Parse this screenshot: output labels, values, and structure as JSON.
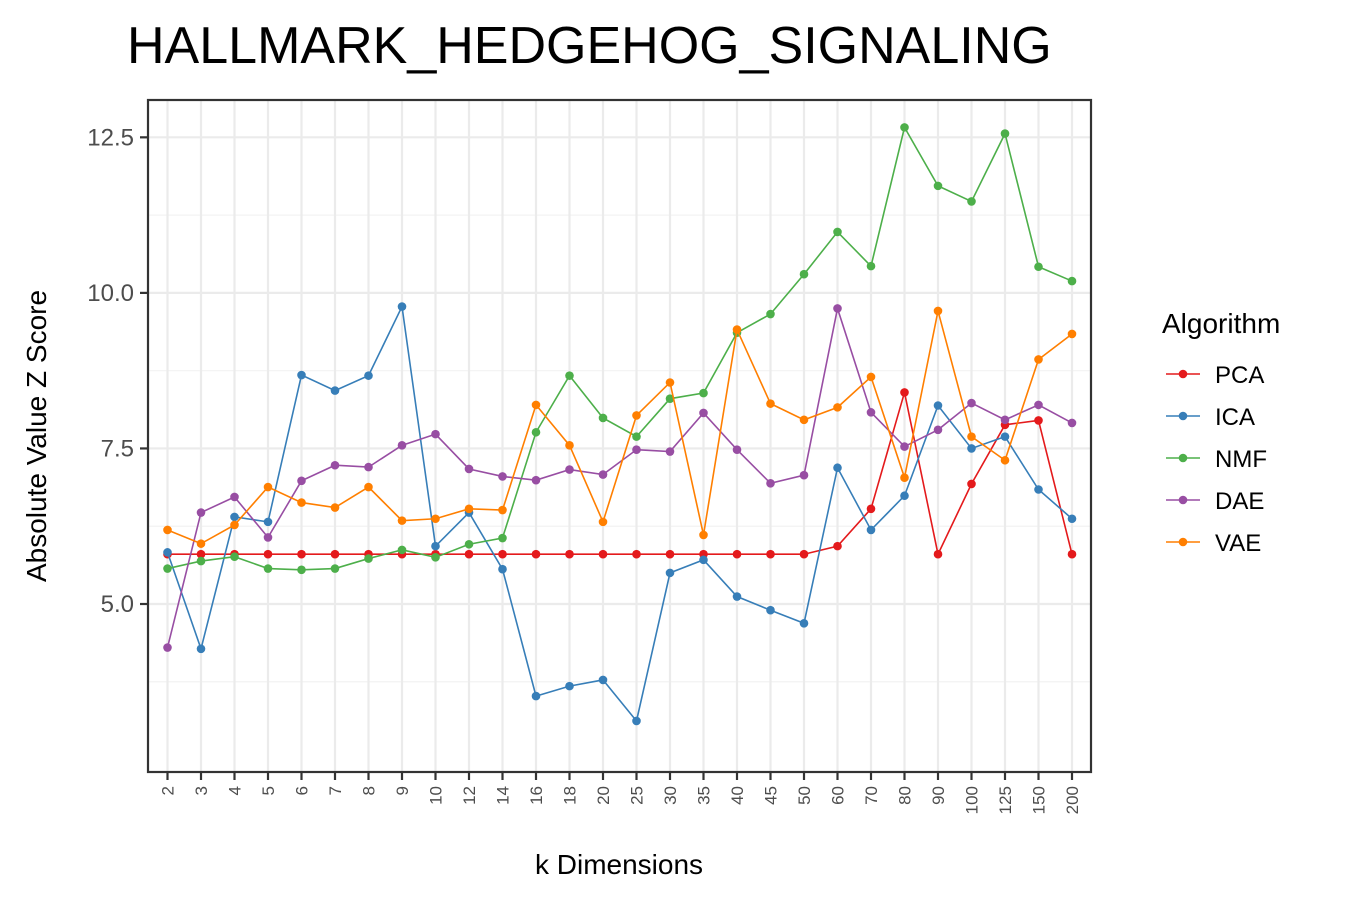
{
  "chart_data": {
    "type": "line",
    "title": "HALLMARK_HEDGEHOG_SIGNALING",
    "xlabel": "k Dimensions",
    "ylabel": "Absolute Value Z Score",
    "categories": [
      "2",
      "3",
      "4",
      "5",
      "6",
      "7",
      "8",
      "9",
      "10",
      "12",
      "14",
      "16",
      "18",
      "20",
      "25",
      "30",
      "35",
      "40",
      "45",
      "50",
      "60",
      "70",
      "80",
      "90",
      "100",
      "125",
      "150",
      "200"
    ],
    "ylim": [
      2.3,
      13.1
    ],
    "yticks": [
      5.0,
      7.5,
      10.0,
      12.5
    ],
    "ytick_labels": [
      "5.0",
      "7.5",
      "10.0",
      "12.5"
    ],
    "grid": true,
    "legend": {
      "title": "Algorithm",
      "position": "right"
    },
    "series": [
      {
        "name": "PCA",
        "color": "#e41a1c",
        "values": [
          5.8,
          5.8,
          5.8,
          5.8,
          5.8,
          5.8,
          5.8,
          5.8,
          5.8,
          5.8,
          5.8,
          5.8,
          5.8,
          5.8,
          5.8,
          5.8,
          5.8,
          5.8,
          5.8,
          5.8,
          5.93,
          6.53,
          8.4,
          5.8,
          6.93,
          7.88,
          7.95,
          5.8
        ]
      },
      {
        "name": "ICA",
        "color": "#377eb8",
        "values": [
          5.83,
          4.28,
          6.4,
          6.32,
          8.68,
          8.43,
          8.67,
          9.78,
          5.93,
          6.47,
          5.56,
          3.52,
          3.68,
          3.78,
          3.12,
          5.5,
          5.71,
          5.12,
          4.9,
          4.69,
          7.19,
          6.19,
          6.74,
          8.19,
          7.5,
          7.69,
          6.84,
          6.37
        ]
      },
      {
        "name": "NMF",
        "color": "#4daf4a",
        "values": [
          5.57,
          5.69,
          5.76,
          5.57,
          5.55,
          5.57,
          5.73,
          5.87,
          5.75,
          5.96,
          6.06,
          7.76,
          8.67,
          7.99,
          7.69,
          8.3,
          8.39,
          9.36,
          9.66,
          10.3,
          10.98,
          10.43,
          12.66,
          11.72,
          11.47,
          12.56,
          10.42,
          10.19
        ]
      },
      {
        "name": "DAE",
        "color": "#984ea3",
        "values": [
          4.3,
          6.47,
          6.72,
          6.07,
          6.98,
          7.23,
          7.2,
          7.55,
          7.73,
          7.17,
          7.05,
          6.99,
          7.16,
          7.08,
          7.48,
          7.45,
          8.07,
          7.48,
          6.94,
          7.07,
          9.75,
          8.08,
          7.53,
          7.8,
          8.23,
          7.96,
          8.2,
          7.91
        ]
      },
      {
        "name": "VAE",
        "color": "#ff7f00",
        "values": [
          6.19,
          5.97,
          6.27,
          6.88,
          6.63,
          6.55,
          6.88,
          6.34,
          6.37,
          6.53,
          6.51,
          8.2,
          7.55,
          6.32,
          8.03,
          8.56,
          6.11,
          9.41,
          8.22,
          7.96,
          8.16,
          8.65,
          7.03,
          9.71,
          7.69,
          7.31,
          8.93,
          9.34
        ]
      }
    ]
  }
}
